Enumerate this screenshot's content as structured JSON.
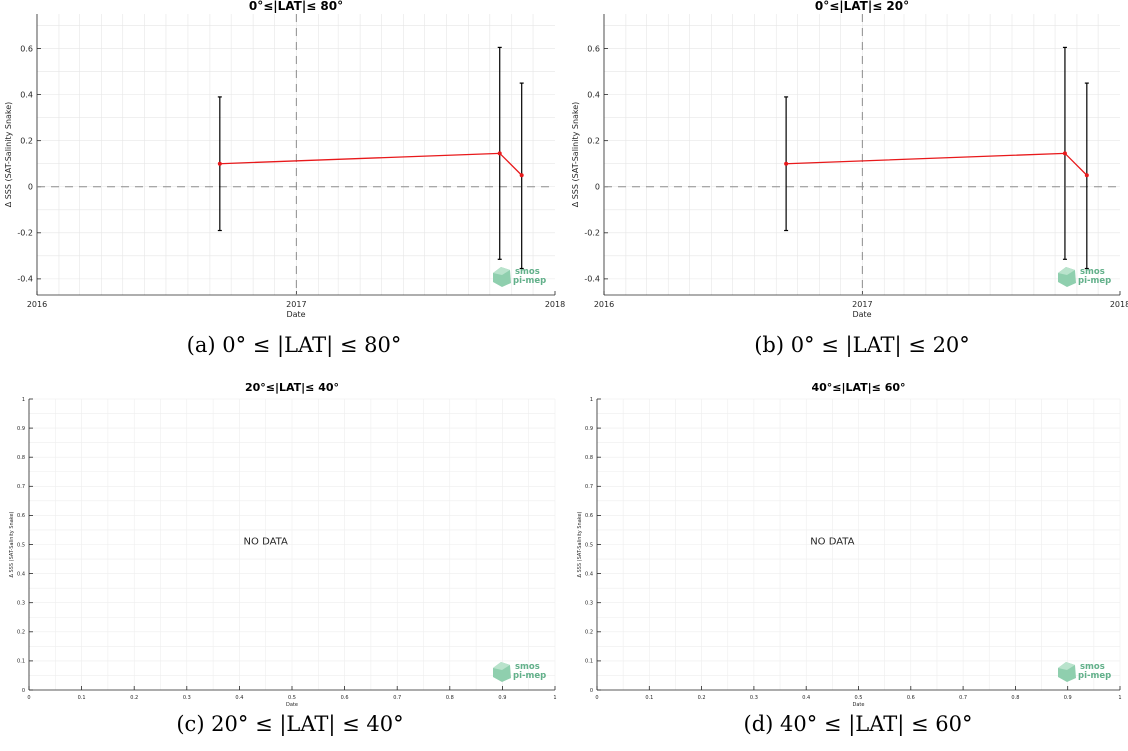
{
  "chart_data": [
    {
      "type": "line",
      "title": "0°≤|LAT|≤ 80°",
      "xlabel": "Date",
      "ylabel": "Δ SSS (SAT-Salinity Snake)",
      "x_ticks": [
        "2016",
        "2017",
        "2018"
      ],
      "y_ticks": [
        "-0.4",
        "-0.2",
        "0",
        "0.2",
        "0.4",
        "0.6"
      ],
      "xlim": [
        "2016-01-01",
        "2018-01-01"
      ],
      "ylim": [
        -0.47,
        0.75
      ],
      "grid": true,
      "x": [
        "2016-09-15",
        "2017-10-15",
        "2017-11-15"
      ],
      "series": [
        {
          "values": [
            0.1,
            0.145,
            0.05
          ],
          "error_low": [
            -0.19,
            -0.315,
            -0.355
          ],
          "error_high": [
            0.39,
            0.605,
            0.45
          ]
        }
      ],
      "reference_lines": {
        "y": 0,
        "x": "2017-01-01"
      },
      "caption": "(a) 0° ≤ |LAT| ≤ 80°",
      "logo": "smos pi-mep"
    },
    {
      "type": "line",
      "title": "0°≤|LAT|≤ 20°",
      "xlabel": "Date",
      "ylabel": "Δ SSS (SAT-Salinity Snake)",
      "x_ticks": [
        "2016",
        "2017",
        "2018"
      ],
      "y_ticks": [
        "-0.4",
        "-0.2",
        "0",
        "0.2",
        "0.4",
        "0.6"
      ],
      "xlim": [
        "2016-01-01",
        "2018-01-01"
      ],
      "ylim": [
        -0.47,
        0.75
      ],
      "grid": true,
      "x": [
        "2016-09-15",
        "2017-10-15",
        "2017-11-15"
      ],
      "series": [
        {
          "values": [
            0.1,
            0.145,
            0.05
          ],
          "error_low": [
            -0.19,
            -0.315,
            -0.355
          ],
          "error_high": [
            0.39,
            0.605,
            0.45
          ]
        }
      ],
      "reference_lines": {
        "y": 0,
        "x": "2017-01-01"
      },
      "caption": "(b) 0° ≤ |LAT| ≤ 20°",
      "logo": "smos pi-mep"
    },
    {
      "type": "line",
      "title": "20°≤|LAT|≤ 40°",
      "xlabel": "Date",
      "ylabel": "Δ SSS (SAT-Salinity Snake)",
      "x_ticks": [
        "0",
        "0.1",
        "0.2",
        "0.3",
        "0.4",
        "0.5",
        "0.6",
        "0.7",
        "0.8",
        "0.9",
        "1"
      ],
      "y_ticks": [
        "0",
        "0.1",
        "0.2",
        "0.3",
        "0.4",
        "0.5",
        "0.6",
        "0.7",
        "0.8",
        "0.9",
        "1"
      ],
      "xlim": [
        0,
        1
      ],
      "ylim": [
        0,
        1
      ],
      "grid": true,
      "series": [],
      "annotation": "NO DATA",
      "caption": "(c) 20° ≤ |LAT| ≤ 40°",
      "logo": "smos pi-mep"
    },
    {
      "type": "line",
      "title": "40°≤|LAT|≤ 60°",
      "xlabel": "Date",
      "ylabel": "Δ SSS (SAT-Salinity Snake)",
      "x_ticks": [
        "0",
        "0.1",
        "0.2",
        "0.3",
        "0.4",
        "0.5",
        "0.6",
        "0.7",
        "0.8",
        "0.9",
        "1"
      ],
      "y_ticks": [
        "0",
        "0.1",
        "0.2",
        "0.3",
        "0.4",
        "0.5",
        "0.6",
        "0.7",
        "0.8",
        "0.9",
        "1"
      ],
      "xlim": [
        0,
        1
      ],
      "ylim": [
        0,
        1
      ],
      "grid": true,
      "series": [],
      "annotation": "NO DATA",
      "caption": "(d) 40° ≤ |LAT| ≤ 60°",
      "logo": "smos pi-mep"
    }
  ],
  "colors": {
    "line": "#e8191b",
    "errorbar": "#000000",
    "grid": "#e6e6e6",
    "axis": "#262626",
    "logo": "#62b08a"
  }
}
